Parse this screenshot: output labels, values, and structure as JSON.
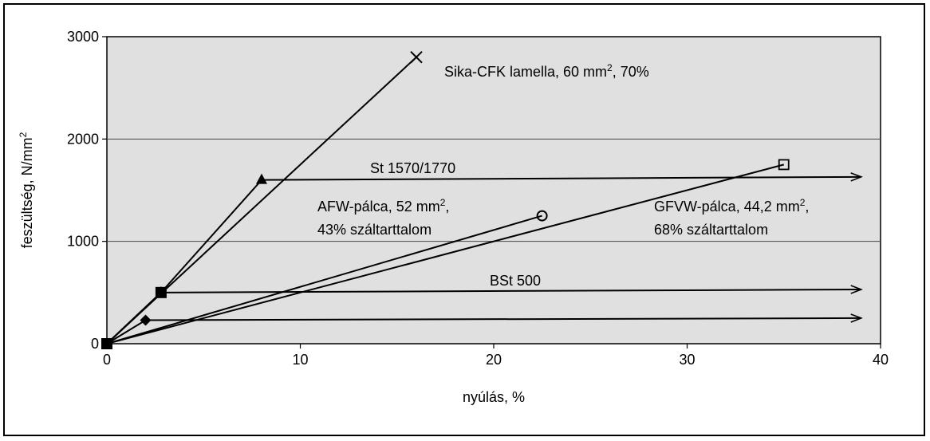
{
  "chart_data": {
    "type": "line",
    "title": "",
    "xlabel": "nyúlás, %",
    "ylabel_main": "feszültség, N/mm",
    "ylabel_sup": "2",
    "xlim": [
      0,
      40
    ],
    "ylim": [
      0,
      3000
    ],
    "xticks": [
      0,
      10,
      20,
      30,
      40
    ],
    "yticks": [
      0,
      1000,
      2000,
      3000
    ],
    "grid": "horizontal",
    "plot_background": "#e0e0e0",
    "series": [
      {
        "key": "cfk",
        "x": [
          0,
          16
        ],
        "y": [
          0,
          2800
        ],
        "marker": "x",
        "label_parts": [
          [
            "Sika-CFK lamella, 60 mm",
            ""
          ],
          [
            "2",
            "sup"
          ],
          [
            ", 70%",
            ""
          ]
        ]
      },
      {
        "key": "afw",
        "x": [
          0,
          22.5
        ],
        "y": [
          0,
          1250
        ],
        "marker": "circle-open",
        "label_parts": [
          [
            "AFW-pálca, 52 mm",
            ""
          ],
          [
            "2",
            "sup"
          ],
          [
            ",",
            ""
          ]
        ],
        "label_line2": "43% száltarttalom"
      },
      {
        "key": "gfvw",
        "x": [
          0,
          35
        ],
        "y": [
          0,
          1750
        ],
        "marker": "square-open",
        "label_parts": [
          [
            "GFVW-pálca, 44,2 mm",
            ""
          ],
          [
            "2",
            "sup"
          ],
          [
            ",",
            ""
          ]
        ],
        "label_line2": "68% száltarttalom"
      },
      {
        "key": "st1570",
        "x": [
          0,
          2.8,
          8,
          39
        ],
        "y": [
          0,
          500,
          1600,
          1630
        ],
        "marker": "triangle",
        "arrow": true,
        "label_parts": [
          [
            "St 1570/1770",
            ""
          ]
        ]
      },
      {
        "key": "bst500",
        "x": [
          0,
          2.8,
          39
        ],
        "y": [
          0,
          500,
          530
        ],
        "marker": "square",
        "arrow": true,
        "label_parts": [
          [
            "BSt 500",
            ""
          ]
        ]
      },
      {
        "key": "steel3",
        "x": [
          0,
          2,
          39
        ],
        "y": [
          0,
          230,
          250
        ],
        "marker": "diamond",
        "arrow": true,
        "label_parts": []
      }
    ]
  }
}
